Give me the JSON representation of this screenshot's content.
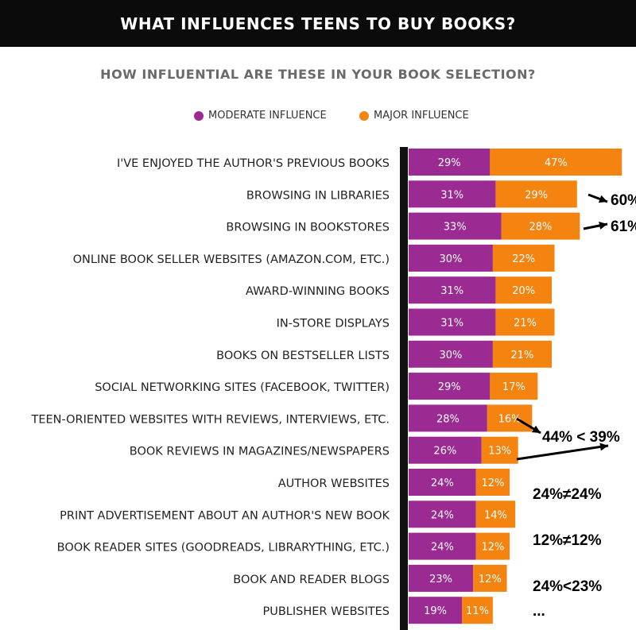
{
  "banner": {
    "title": "WHAT INFLUENCES TEENS TO BUY BOOKS?"
  },
  "colors": {
    "moderate": "#9b2a93",
    "major": "#f5830f",
    "axis": "#111111",
    "banner_bg": "#0b0b0b"
  },
  "chart_data": {
    "type": "bar",
    "orientation": "horizontal",
    "stacked": true,
    "title": "HOW INFLUENTIAL ARE THESE IN YOUR BOOK SELECTION?",
    "legend_position": "top",
    "categories": [
      "I'VE ENJOYED THE AUTHOR'S PREVIOUS BOOKS",
      "BROWSING IN LIBRARIES",
      "BROWSING IN BOOKSTORES",
      "ONLINE BOOK SELLER WEBSITES (AMAZON.COM, ETC.)",
      "AWARD-WINNING BOOKS",
      "IN-STORE DISPLAYS",
      "BOOKS ON BESTSELLER LISTS",
      "SOCIAL NETWORKING SITES (FACEBOOK, TWITTER)",
      "TEEN-ORIENTED WEBSITES WITH REVIEWS, INTERVIEWS, ETC.",
      "BOOK REVIEWS IN MAGAZINES/NEWSPAPERS",
      "AUTHOR WEBSITES",
      "PRINT ADVERTISEMENT ABOUT AN AUTHOR'S NEW BOOK",
      "BOOK READER SITES (GOODREADS, LIBRARYTHING, ETC.)",
      "BOOK AND READER BLOGS",
      "PUBLISHER WEBSITES"
    ],
    "series": [
      {
        "name": "MODERATE INFLUENCE",
        "values": [
          29,
          31,
          33,
          30,
          31,
          31,
          30,
          29,
          28,
          26,
          24,
          24,
          24,
          23,
          19
        ]
      },
      {
        "name": "MAJOR INFLUENCE",
        "values": [
          47,
          29,
          28,
          22,
          20,
          21,
          21,
          17,
          16,
          13,
          12,
          14,
          12,
          12,
          11
        ]
      }
    ],
    "data_labels": {
      "moderate": [
        "29%",
        "31%",
        "33%",
        "30%",
        "31%",
        "31%",
        "30%",
        "29%",
        "28%",
        "26%",
        "24%",
        "24%",
        "24%",
        "23%",
        "19%"
      ],
      "major": [
        "47%",
        "29%",
        "28%",
        "22%",
        "20%",
        "21%",
        "21%",
        "17%",
        "16%",
        "13%",
        "12%",
        "14%",
        "12%",
        "12%",
        "11%"
      ]
    },
    "annotations": [
      "60%",
      "61%",
      "44% < 39%",
      "24%≠24%",
      "12%≠12%",
      "24%<23%",
      "..."
    ]
  }
}
